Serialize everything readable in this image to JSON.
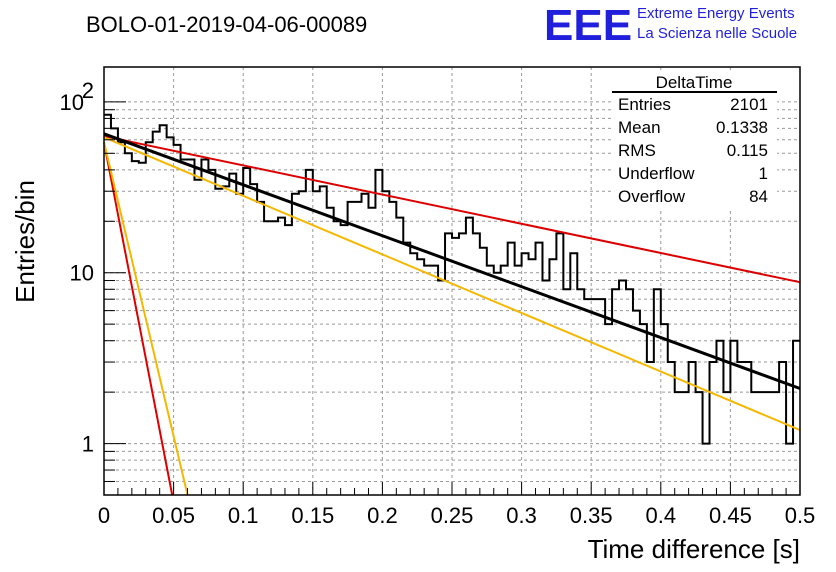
{
  "header": {
    "title": "BOLO-01-2019-04-06-00089",
    "logo_text": "EEE",
    "logo_line1": "Extreme Energy Events",
    "logo_line2": "La Scienza nelle Scuole"
  },
  "stats": {
    "name": "DeltaTime",
    "rows": [
      {
        "label": "Entries",
        "value": "2101"
      },
      {
        "label": "Mean",
        "value": "0.1338"
      },
      {
        "label": "RMS",
        "value": "0.115"
      },
      {
        "label": "Underflow",
        "value": "1"
      },
      {
        "label": "Overflow",
        "value": "84"
      }
    ]
  },
  "colors": {
    "histogram": "#000000",
    "fit_main": "#000000",
    "fit_red": "#dd0000",
    "fit_yellow": "#f5b800",
    "grid": "#9a9a9a",
    "logo": "#1f1fdc"
  },
  "chart_data": {
    "type": "line",
    "title": "BOLO-01-2019-04-06-00089",
    "xlabel": "Time difference [s]",
    "ylabel": "Entries/bin",
    "xlim": [
      0,
      0.5
    ],
    "ylim": [
      0.5,
      160
    ],
    "yscale": "log",
    "grid": true,
    "x_ticks": [
      "0",
      "0.05",
      "0.1",
      "0.15",
      "0.2",
      "0.25",
      "0.3",
      "0.35",
      "0.4",
      "0.45",
      "0.5"
    ],
    "y_ticks": [
      {
        "value": 1,
        "label": "1"
      },
      {
        "value": 10,
        "label": "10"
      },
      {
        "value": 100,
        "label": "10",
        "sup": "2"
      }
    ],
    "histogram": {
      "bin_width": 0.005,
      "values": [
        84,
        70,
        58,
        50,
        45,
        44,
        58,
        67,
        73,
        62,
        56,
        46,
        46,
        35,
        46,
        40,
        31,
        32,
        38,
        29,
        41,
        33,
        26,
        20,
        20,
        21,
        19,
        29,
        30,
        40,
        30,
        32,
        24,
        20,
        19,
        26,
        26,
        29,
        24,
        40,
        30,
        26,
        21,
        15,
        13,
        12,
        11,
        11,
        9,
        17,
        16,
        17,
        21,
        17,
        14,
        11,
        10,
        11,
        15,
        11,
        13,
        12,
        15,
        9,
        12,
        17,
        8,
        13,
        8,
        7,
        7,
        7,
        5,
        8,
        9,
        8,
        6,
        5,
        3,
        8,
        5,
        3,
        2,
        2,
        3,
        2,
        1,
        3,
        4,
        2,
        4,
        3,
        3,
        2,
        2,
        2,
        2,
        3,
        1,
        4
      ]
    },
    "series": [
      {
        "x": [
          0,
          0.5
        ],
        "y": [
          65,
          2.1
        ]
      },
      {
        "x": [
          0,
          0.5
        ],
        "y": [
          63,
          8.8
        ]
      },
      {
        "x": [
          0,
          0.5
        ],
        "y": [
          62,
          1.2
        ]
      },
      {
        "x": [
          0,
          0.049
        ],
        "y": [
          58,
          0.5
        ]
      },
      {
        "x": [
          0,
          0.06
        ],
        "y": [
          58,
          0.5
        ]
      }
    ]
  }
}
